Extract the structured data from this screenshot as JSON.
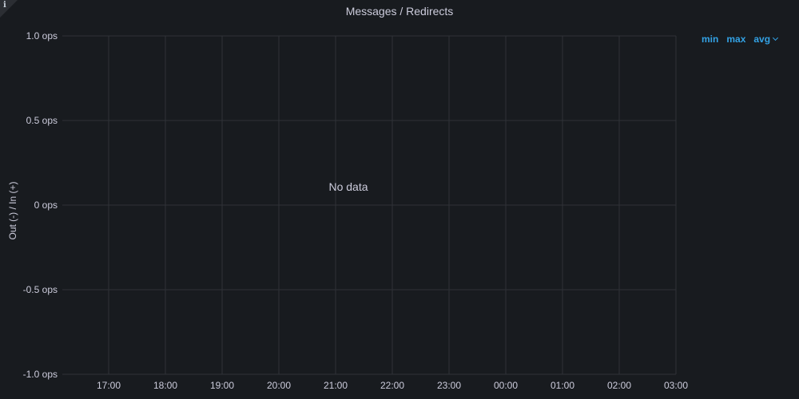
{
  "panel": {
    "title": "Messages / Redirects",
    "no_data_text": "No data",
    "info_icon": "info-icon"
  },
  "legend": {
    "min_label": "min",
    "max_label": "max",
    "avg_label": "avg",
    "sort_icon": "chevron-down-icon",
    "color": "#33a2e5"
  },
  "chart_data": {
    "type": "line",
    "title": "Messages / Redirects",
    "xlabel": "",
    "ylabel": "Out (-) / In (+)",
    "x_ticks": [
      "17:00",
      "18:00",
      "19:00",
      "20:00",
      "21:00",
      "22:00",
      "23:00",
      "00:00",
      "01:00",
      "02:00",
      "03:00"
    ],
    "y_ticks": [
      "1.0 ops",
      "0.5 ops",
      "0 ops",
      "-0.5 ops",
      "-1.0 ops"
    ],
    "ylim": [
      -1.0,
      1.0
    ],
    "series": [],
    "grid": true
  }
}
